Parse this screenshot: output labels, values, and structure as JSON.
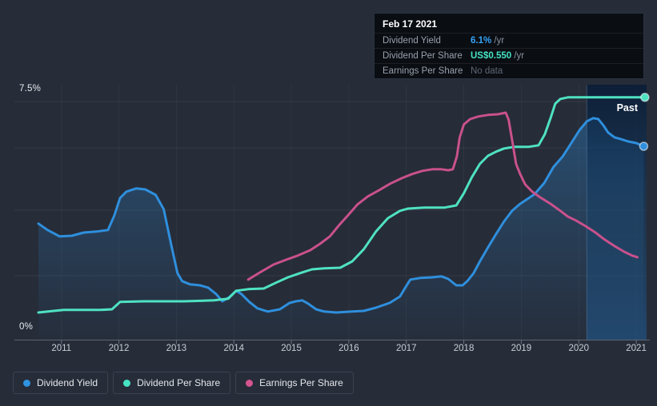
{
  "tooltip": {
    "date": "Feb 17 2021",
    "rows": [
      {
        "label": "Dividend Yield",
        "value": "6.1%",
        "suffix": " /yr"
      },
      {
        "label": "Dividend Per Share",
        "value": "US$0.550",
        "suffix": " /yr"
      },
      {
        "label": "Earnings Per Share",
        "value": "No data",
        "suffix": ""
      }
    ]
  },
  "past_label": "Past",
  "legend": {
    "items": [
      {
        "label": "Dividend Yield",
        "color": "#2f93e0"
      },
      {
        "label": "Dividend Per Share",
        "color": "#47e3c3"
      },
      {
        "label": "Earnings Per Share",
        "color": "#d4548f"
      }
    ]
  },
  "colors": {
    "background": "#262c38",
    "grid": "rgba(255,255,255,0.07)",
    "vgrid": "rgba(255,255,255,0.045)",
    "axis_line": "#5d6570",
    "tick": "#6a7380",
    "dividend_yield": "#2f8fdd",
    "dividend_per_share": "#4fe2c2",
    "earnings_per_share": "#c9518c",
    "tooltip_yield_value": "#36a3f7",
    "tooltip_dps_value": "#45e3c4"
  },
  "chart_data": {
    "type": "line",
    "title": "Dividend history (dividend yield, dividend per share, earnings per share)",
    "x_axis": {
      "min": 2010.6,
      "max": 2021.18,
      "ticks": [
        2011,
        2012,
        2013,
        2014,
        2015,
        2016,
        2017,
        2018,
        2019,
        2020,
        2021
      ]
    },
    "y_axis": {
      "min": 0,
      "max": 7.5,
      "labels": [
        "7.5%",
        "0%"
      ],
      "grid_pcts": [
        7.5,
        6.05,
        4.1,
        2.05
      ]
    },
    "past_band": {
      "start_year": 2020.14,
      "end_year": 2021.18
    },
    "unit_note": "dividend_yield in percent (axis 0-7.5%); dividend_per_share and earnings_per_share plotted on same visual scale, at 2021 dividend_per_share top plateau equals US$0.550/yr",
    "series": [
      {
        "name": "Dividend Yield",
        "key": "dividend_yield",
        "area_fill": true,
        "end_marker": true,
        "points": [
          [
            2010.6,
            3.68
          ],
          [
            2010.76,
            3.48
          ],
          [
            2010.97,
            3.28
          ],
          [
            2011.18,
            3.3
          ],
          [
            2011.39,
            3.4
          ],
          [
            2011.6,
            3.43
          ],
          [
            2011.81,
            3.48
          ],
          [
            2011.92,
            3.93
          ],
          [
            2012.02,
            4.48
          ],
          [
            2012.13,
            4.68
          ],
          [
            2012.3,
            4.78
          ],
          [
            2012.46,
            4.75
          ],
          [
            2012.64,
            4.58
          ],
          [
            2012.78,
            4.13
          ],
          [
            2012.92,
            2.93
          ],
          [
            2013.02,
            2.13
          ],
          [
            2013.1,
            1.88
          ],
          [
            2013.24,
            1.78
          ],
          [
            2013.41,
            1.75
          ],
          [
            2013.55,
            1.68
          ],
          [
            2013.69,
            1.48
          ],
          [
            2013.8,
            1.25
          ],
          [
            2013.92,
            1.38
          ],
          [
            2014.04,
            1.58
          ],
          [
            2014.13,
            1.48
          ],
          [
            2014.27,
            1.23
          ],
          [
            2014.41,
            1.03
          ],
          [
            2014.59,
            0.93
          ],
          [
            2014.8,
            1.0
          ],
          [
            2014.97,
            1.2
          ],
          [
            2015.08,
            1.25
          ],
          [
            2015.19,
            1.28
          ],
          [
            2015.29,
            1.18
          ],
          [
            2015.43,
            1.0
          ],
          [
            2015.57,
            0.93
          ],
          [
            2015.78,
            0.9
          ],
          [
            2016.06,
            0.93
          ],
          [
            2016.26,
            0.95
          ],
          [
            2016.47,
            1.05
          ],
          [
            2016.71,
            1.2
          ],
          [
            2016.89,
            1.4
          ],
          [
            2017.0,
            1.73
          ],
          [
            2017.07,
            1.93
          ],
          [
            2017.24,
            1.98
          ],
          [
            2017.45,
            2.0
          ],
          [
            2017.61,
            2.03
          ],
          [
            2017.73,
            1.95
          ],
          [
            2017.87,
            1.75
          ],
          [
            2017.98,
            1.75
          ],
          [
            2018.07,
            1.9
          ],
          [
            2018.17,
            2.13
          ],
          [
            2018.28,
            2.5
          ],
          [
            2018.42,
            2.93
          ],
          [
            2018.56,
            3.35
          ],
          [
            2018.7,
            3.75
          ],
          [
            2018.84,
            4.08
          ],
          [
            2018.98,
            4.3
          ],
          [
            2019.09,
            4.43
          ],
          [
            2019.23,
            4.6
          ],
          [
            2019.4,
            4.95
          ],
          [
            2019.56,
            5.45
          ],
          [
            2019.72,
            5.78
          ],
          [
            2019.87,
            6.2
          ],
          [
            2020.01,
            6.6
          ],
          [
            2020.14,
            6.88
          ],
          [
            2020.25,
            6.98
          ],
          [
            2020.34,
            6.95
          ],
          [
            2020.43,
            6.75
          ],
          [
            2020.51,
            6.53
          ],
          [
            2020.62,
            6.38
          ],
          [
            2020.72,
            6.33
          ],
          [
            2020.86,
            6.25
          ],
          [
            2021.0,
            6.2
          ],
          [
            2021.13,
            6.1
          ]
        ]
      },
      {
        "name": "Dividend Per Share",
        "key": "dividend_per_share",
        "area_fill": false,
        "end_marker": true,
        "points": [
          [
            2010.6,
            0.9
          ],
          [
            2011.04,
            0.98
          ],
          [
            2011.67,
            0.98
          ],
          [
            2011.88,
            1.0
          ],
          [
            2012.02,
            1.23
          ],
          [
            2012.43,
            1.25
          ],
          [
            2013.13,
            1.25
          ],
          [
            2013.66,
            1.28
          ],
          [
            2013.9,
            1.33
          ],
          [
            2014.04,
            1.58
          ],
          [
            2014.25,
            1.63
          ],
          [
            2014.52,
            1.65
          ],
          [
            2014.73,
            1.83
          ],
          [
            2014.94,
            2.0
          ],
          [
            2015.15,
            2.13
          ],
          [
            2015.36,
            2.25
          ],
          [
            2015.57,
            2.28
          ],
          [
            2015.85,
            2.3
          ],
          [
            2016.06,
            2.5
          ],
          [
            2016.26,
            2.88
          ],
          [
            2016.47,
            3.43
          ],
          [
            2016.68,
            3.85
          ],
          [
            2016.89,
            4.08
          ],
          [
            2017.03,
            4.15
          ],
          [
            2017.31,
            4.18
          ],
          [
            2017.66,
            4.18
          ],
          [
            2017.87,
            4.25
          ],
          [
            2018.0,
            4.63
          ],
          [
            2018.14,
            5.13
          ],
          [
            2018.28,
            5.55
          ],
          [
            2018.42,
            5.8
          ],
          [
            2018.56,
            5.93
          ],
          [
            2018.7,
            6.03
          ],
          [
            2018.87,
            6.08
          ],
          [
            2019.12,
            6.08
          ],
          [
            2019.3,
            6.13
          ],
          [
            2019.41,
            6.48
          ],
          [
            2019.51,
            6.98
          ],
          [
            2019.59,
            7.43
          ],
          [
            2019.68,
            7.58
          ],
          [
            2019.81,
            7.63
          ],
          [
            2020.37,
            7.63
          ],
          [
            2021.15,
            7.63
          ]
        ]
      },
      {
        "name": "Earnings Per Share",
        "key": "earnings_per_share",
        "area_fill": false,
        "end_marker": false,
        "points": [
          [
            2014.25,
            1.93
          ],
          [
            2014.45,
            2.15
          ],
          [
            2014.69,
            2.4
          ],
          [
            2014.91,
            2.55
          ],
          [
            2015.11,
            2.68
          ],
          [
            2015.33,
            2.85
          ],
          [
            2015.5,
            3.05
          ],
          [
            2015.67,
            3.28
          ],
          [
            2015.83,
            3.63
          ],
          [
            2015.99,
            3.95
          ],
          [
            2016.15,
            4.28
          ],
          [
            2016.33,
            4.53
          ],
          [
            2016.53,
            4.73
          ],
          [
            2016.72,
            4.93
          ],
          [
            2016.92,
            5.1
          ],
          [
            2017.1,
            5.23
          ],
          [
            2017.28,
            5.33
          ],
          [
            2017.45,
            5.38
          ],
          [
            2017.61,
            5.38
          ],
          [
            2017.73,
            5.35
          ],
          [
            2017.81,
            5.38
          ],
          [
            2017.88,
            5.78
          ],
          [
            2017.93,
            6.38
          ],
          [
            2018.0,
            6.78
          ],
          [
            2018.11,
            6.95
          ],
          [
            2018.25,
            7.03
          ],
          [
            2018.42,
            7.08
          ],
          [
            2018.59,
            7.1
          ],
          [
            2018.73,
            7.15
          ],
          [
            2018.78,
            6.93
          ],
          [
            2018.84,
            6.3
          ],
          [
            2018.91,
            5.55
          ],
          [
            2018.98,
            5.23
          ],
          [
            2019.07,
            4.9
          ],
          [
            2019.19,
            4.68
          ],
          [
            2019.33,
            4.5
          ],
          [
            2019.51,
            4.3
          ],
          [
            2019.68,
            4.08
          ],
          [
            2019.81,
            3.9
          ],
          [
            2019.95,
            3.78
          ],
          [
            2020.12,
            3.6
          ],
          [
            2020.29,
            3.4
          ],
          [
            2020.45,
            3.18
          ],
          [
            2020.62,
            2.98
          ],
          [
            2020.79,
            2.8
          ],
          [
            2020.93,
            2.68
          ],
          [
            2021.02,
            2.63
          ]
        ]
      }
    ]
  }
}
